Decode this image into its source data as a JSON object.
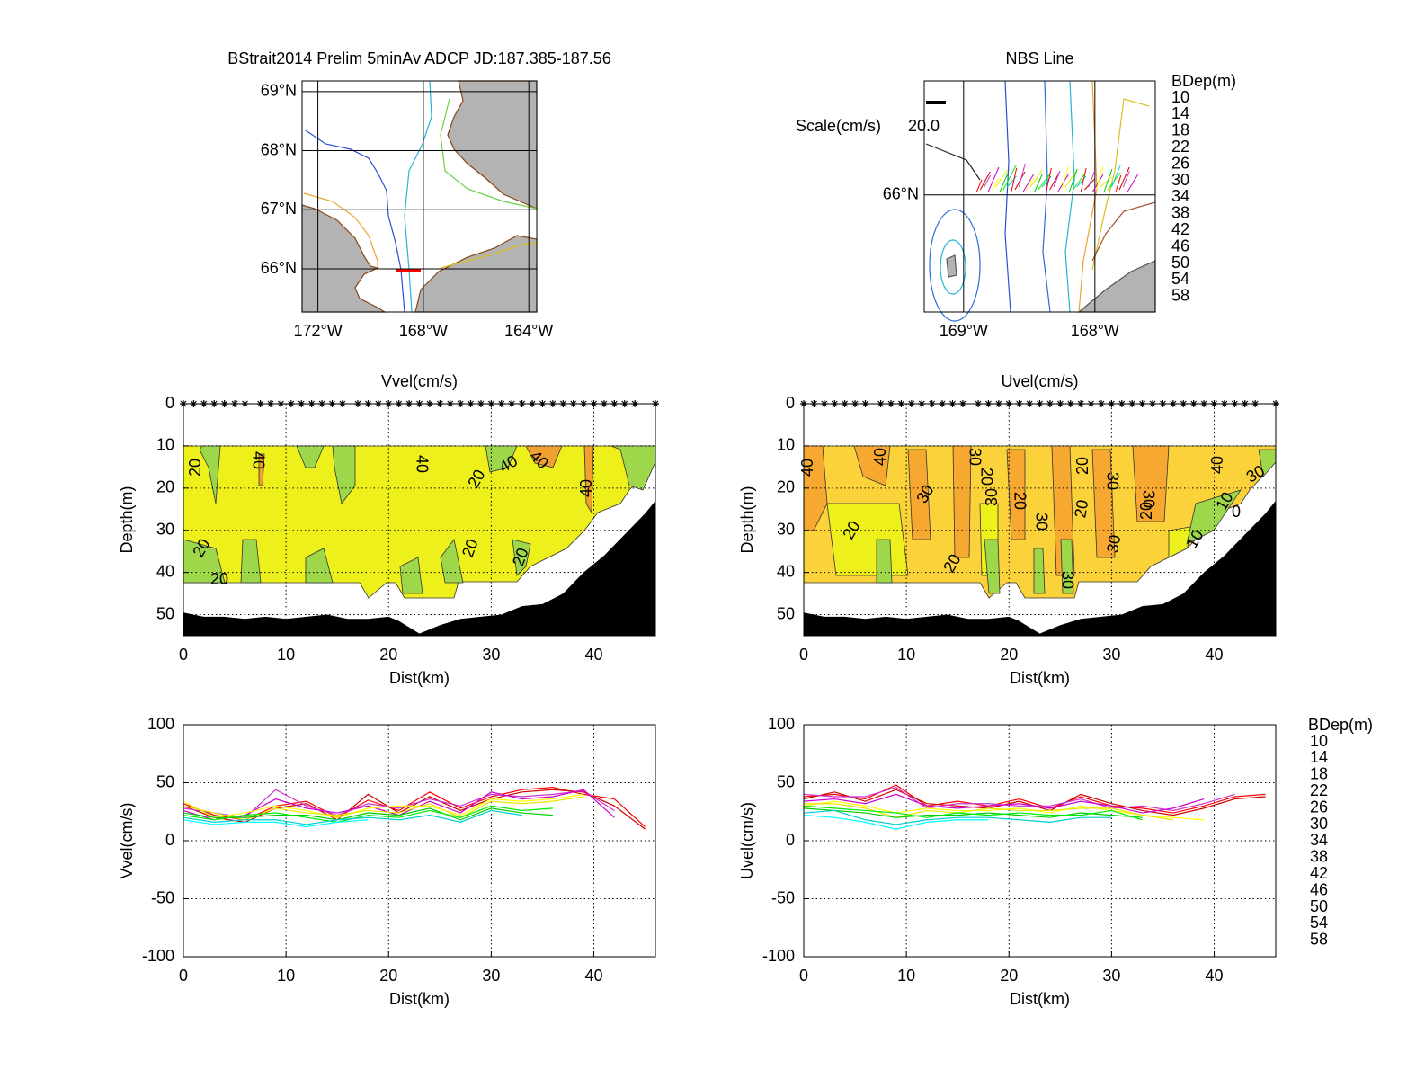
{
  "chart_data": [
    {
      "type": "map",
      "title": "BStrait2014 Prelim 5minAv ADCP JD:187.385-187.56",
      "xlim": [
        -172.6,
        -163.7
      ],
      "ylim": [
        65.27,
        69.18
      ],
      "xticks": [
        {
          "value": -172,
          "label": "172°W"
        },
        {
          "value": -168,
          "label": "168°W"
        },
        {
          "value": -164,
          "label": "164°W"
        }
      ],
      "yticks": [
        {
          "value": 66,
          "label": "66°N"
        },
        {
          "value": 67,
          "label": "67°N"
        },
        {
          "value": 68,
          "label": "68°N"
        },
        {
          "value": 69,
          "label": "69°N"
        }
      ],
      "grid": true
    },
    {
      "type": "map",
      "title": "NBS Line",
      "xlim": [
        -169.3,
        -167.54
      ],
      "ylim": [
        65.64,
        66.35
      ],
      "xticks": [
        {
          "value": -169,
          "label": "169°W"
        },
        {
          "value": -168,
          "label": "168°W"
        }
      ],
      "yticks": [
        {
          "value": 66,
          "label": "66°N"
        }
      ],
      "grid": true,
      "scale_label": "Scale(cm/s)",
      "scale": {
        "value": 20,
        "label": "20.0"
      },
      "legend_title": "BDep(m)",
      "series": [
        {
          "name": "10",
          "color": "#ff0000"
        },
        {
          "name": "14",
          "color": "#cc0000"
        },
        {
          "name": "18",
          "color": "#cc33cc"
        },
        {
          "name": "22",
          "color": "#cc00cc"
        },
        {
          "name": "26",
          "color": "#ffff00"
        },
        {
          "name": "30",
          "color": "#e6e600"
        },
        {
          "name": "34",
          "color": "#00cc00"
        },
        {
          "name": "38",
          "color": "#00ee00"
        },
        {
          "name": "42",
          "color": "#00cccc"
        },
        {
          "name": "46",
          "color": "#00ffff"
        },
        {
          "name": "50",
          "color": "#0000cc"
        },
        {
          "name": "54",
          "color": "#000080"
        },
        {
          "name": "58",
          "color": "#000000"
        }
      ]
    },
    {
      "type": "contour",
      "title": "Vvel(cm/s)",
      "xlabel": "Dist(km)",
      "ylabel": "Depth(m)",
      "xlim": [
        0,
        46
      ],
      "ylim": [
        0,
        55
      ],
      "y_reversed": true,
      "xticks": [
        0,
        10,
        20,
        30,
        40
      ],
      "yticks": [
        0,
        10,
        20,
        30,
        40,
        50
      ],
      "grid": true,
      "stations": [
        0,
        1,
        2,
        3,
        4,
        5,
        6,
        7.5,
        8.5,
        9.5,
        10.5,
        11.5,
        12.5,
        13.5,
        14.5,
        15.5,
        17,
        18,
        19,
        20,
        21,
        22,
        23,
        24,
        25,
        26,
        27,
        28,
        29,
        30,
        31,
        32,
        33,
        34,
        35,
        36,
        37,
        38,
        39,
        40,
        41,
        42,
        43,
        44,
        46
      ],
      "bottom": {
        "x": [
          0,
          2,
          4,
          6,
          8,
          10,
          12,
          14,
          16,
          18,
          20,
          21,
          23,
          25,
          27,
          29,
          31,
          33,
          35,
          37,
          39,
          41,
          43,
          45,
          46
        ],
        "depth": [
          49.5,
          50.5,
          50.5,
          51,
          50.5,
          51,
          50.5,
          50,
          51,
          51,
          50.5,
          51.5,
          54.5,
          52.5,
          51,
          50.5,
          50,
          48,
          47.5,
          45,
          40,
          36,
          31,
          26,
          23
        ]
      },
      "contour_labels": [
        20,
        40,
        40,
        20,
        40,
        40,
        40,
        20,
        20,
        20,
        20
      ]
    },
    {
      "type": "contour",
      "title": "Uvel(cm/s)",
      "xlabel": "Dist(km)",
      "ylabel": "Depth(m)",
      "xlim": [
        0,
        46
      ],
      "ylim": [
        0,
        55
      ],
      "y_reversed": true,
      "xticks": [
        0,
        10,
        20,
        30,
        40
      ],
      "yticks": [
        0,
        10,
        20,
        30,
        40,
        50
      ],
      "grid": true,
      "stations": [
        0,
        1,
        2,
        3,
        4,
        5,
        6,
        7.5,
        8.5,
        9.5,
        10.5,
        11.5,
        12.5,
        13.5,
        14.5,
        15.5,
        17,
        18,
        19,
        20,
        21,
        22,
        23,
        24,
        25,
        26,
        27,
        28,
        29,
        30,
        31,
        32,
        33,
        34,
        35,
        36,
        37,
        38,
        39,
        40,
        41,
        42,
        43,
        44,
        46
      ],
      "bottom": {
        "x": [
          0,
          2,
          4,
          6,
          8,
          10,
          12,
          14,
          16,
          18,
          20,
          21,
          23,
          25,
          27,
          29,
          31,
          33,
          35,
          37,
          39,
          41,
          43,
          45,
          46
        ],
        "depth": [
          49.5,
          50.5,
          50.5,
          51,
          50.5,
          51,
          50.5,
          50,
          51,
          51,
          50.5,
          51.5,
          54.5,
          52.5,
          51,
          50.5,
          50,
          48,
          47.5,
          45,
          40,
          36,
          31,
          26,
          23
        ]
      },
      "contour_labels": [
        40,
        40,
        30,
        20,
        30,
        30,
        20,
        20,
        30,
        20,
        30,
        20,
        30,
        20,
        30,
        20,
        30,
        40,
        30,
        10,
        0,
        10
      ]
    },
    {
      "type": "line",
      "xlabel": "Dist(km)",
      "ylabel": "Vvel(cm/s)",
      "xlim": [
        0,
        46
      ],
      "ylim": [
        -100,
        100
      ],
      "xticks": [
        0,
        10,
        20,
        30,
        40
      ],
      "yticks": [
        -100,
        -50,
        0,
        50,
        100
      ],
      "grid": true,
      "x": [
        0,
        3,
        6,
        9,
        12,
        15,
        18,
        21,
        24,
        27,
        30,
        33,
        36,
        39,
        42,
        45
      ],
      "series": [
        {
          "color": "#ff0000",
          "values": [
            32,
            22,
            18,
            30,
            34,
            20,
            35,
            26,
            42,
            28,
            38,
            44,
            46,
            40,
            36,
            12
          ]
        },
        {
          "color": "#cc0000",
          "values": [
            30,
            20,
            16,
            28,
            32,
            18,
            40,
            24,
            38,
            26,
            36,
            42,
            44,
            42,
            30,
            10
          ]
        },
        {
          "color": "#cc33cc",
          "values": [
            28,
            24,
            20,
            44,
            30,
            22,
            32,
            28,
            36,
            30,
            40,
            38,
            40,
            43,
            26,
            null
          ]
        },
        {
          "color": "#cc00cc",
          "values": [
            26,
            18,
            22,
            36,
            28,
            24,
            30,
            22,
            34,
            24,
            42,
            36,
            38,
            44,
            20,
            null
          ]
        },
        {
          "color": "#ffff00",
          "values": [
            34,
            20,
            24,
            30,
            26,
            20,
            28,
            30,
            30,
            22,
            36,
            34,
            36,
            40,
            null,
            null
          ]
        },
        {
          "color": "#e6e600",
          "values": [
            30,
            24,
            18,
            28,
            24,
            22,
            26,
            24,
            32,
            20,
            34,
            32,
            34,
            38,
            null,
            null
          ]
        },
        {
          "color": "#00cc00",
          "values": [
            24,
            20,
            20,
            22,
            22,
            18,
            24,
            22,
            28,
            18,
            28,
            24,
            22,
            null,
            null,
            null
          ]
        },
        {
          "color": "#00ee00",
          "values": [
            22,
            18,
            22,
            24,
            20,
            16,
            22,
            20,
            26,
            20,
            30,
            26,
            28,
            null,
            null,
            null
          ]
        },
        {
          "color": "#00cccc",
          "values": [
            20,
            16,
            18,
            18,
            14,
            18,
            20,
            18,
            22,
            16,
            26,
            22,
            null,
            null,
            null,
            null
          ]
        },
        {
          "color": "#00ffff",
          "values": [
            18,
            14,
            16,
            16,
            12,
            16,
            18,
            null,
            null,
            null,
            null,
            null,
            null,
            null,
            null,
            null
          ]
        },
        {
          "color": "#0000cc",
          "values": [
            null,
            null,
            null,
            null,
            null,
            null,
            null,
            null,
            null,
            null,
            null,
            null,
            null,
            null,
            null,
            null
          ]
        },
        {
          "color": "#000080",
          "values": [
            null,
            null,
            null,
            null,
            null,
            null,
            null,
            null,
            null,
            null,
            null,
            null,
            null,
            null,
            null,
            null
          ]
        },
        {
          "color": "#000000",
          "values": [
            null,
            null,
            null,
            null,
            null,
            null,
            null,
            null,
            null,
            null,
            null,
            null,
            null,
            null,
            null,
            null
          ]
        }
      ]
    },
    {
      "type": "line",
      "xlabel": "Dist(km)",
      "ylabel": "Uvel(cm/s)",
      "xlim": [
        0,
        46
      ],
      "ylim": [
        -100,
        100
      ],
      "xticks": [
        0,
        10,
        20,
        30,
        40
      ],
      "yticks": [
        -100,
        -50,
        0,
        50,
        100
      ],
      "grid": true,
      "legend": "outside-right",
      "legend_title": "BDep(m)",
      "x": [
        0,
        3,
        6,
        9,
        12,
        15,
        18,
        21,
        24,
        27,
        30,
        33,
        36,
        39,
        42,
        45
      ],
      "series": [
        {
          "name": "10",
          "color": "#ff0000",
          "values": [
            38,
            40,
            36,
            48,
            30,
            34,
            30,
            36,
            28,
            38,
            30,
            28,
            24,
            30,
            38,
            40
          ]
        },
        {
          "name": "14",
          "color": "#cc0000",
          "values": [
            36,
            42,
            34,
            44,
            32,
            30,
            28,
            34,
            26,
            40,
            32,
            26,
            22,
            28,
            36,
            38
          ]
        },
        {
          "name": "18",
          "color": "#cc33cc",
          "values": [
            40,
            38,
            38,
            46,
            28,
            32,
            32,
            30,
            30,
            36,
            28,
            30,
            26,
            32,
            40,
            null
          ]
        },
        {
          "name": "22",
          "color": "#cc00cc",
          "values": [
            34,
            36,
            32,
            40,
            30,
            28,
            30,
            32,
            28,
            34,
            30,
            24,
            28,
            36,
            null,
            null
          ]
        },
        {
          "name": "26",
          "color": "#ffff00",
          "values": [
            30,
            34,
            30,
            24,
            28,
            26,
            26,
            28,
            24,
            30,
            26,
            22,
            20,
            18,
            null,
            null
          ]
        },
        {
          "name": "30",
          "color": "#e6e600",
          "values": [
            32,
            32,
            28,
            20,
            26,
            24,
            28,
            26,
            26,
            28,
            28,
            22,
            18,
            null,
            null,
            null
          ]
        },
        {
          "name": "34",
          "color": "#00cc00",
          "values": [
            28,
            26,
            24,
            20,
            22,
            22,
            24,
            22,
            20,
            24,
            22,
            20,
            null,
            null,
            null,
            null
          ]
        },
        {
          "name": "38",
          "color": "#00ee00",
          "values": [
            30,
            28,
            26,
            24,
            20,
            24,
            22,
            24,
            22,
            22,
            26,
            18,
            null,
            null,
            null,
            null
          ]
        },
        {
          "name": "42",
          "color": "#00cccc",
          "values": [
            24,
            26,
            18,
            14,
            18,
            20,
            20,
            18,
            16,
            20,
            20,
            null,
            null,
            null,
            null,
            null
          ]
        },
        {
          "name": "46",
          "color": "#00ffff",
          "values": [
            22,
            20,
            16,
            10,
            16,
            18,
            18,
            null,
            null,
            null,
            null,
            null,
            null,
            null,
            null,
            null
          ]
        },
        {
          "name": "50",
          "color": "#0000cc",
          "values": [
            null,
            null,
            null,
            null,
            null,
            null,
            null,
            null,
            null,
            null,
            null,
            null,
            null,
            null,
            null,
            null
          ]
        },
        {
          "name": "54",
          "color": "#000080",
          "values": [
            null,
            null,
            null,
            null,
            null,
            null,
            null,
            null,
            null,
            null,
            null,
            null,
            null,
            null,
            null,
            null
          ]
        },
        {
          "name": "58",
          "color": "#000000",
          "values": [
            null,
            null,
            null,
            null,
            null,
            null,
            null,
            null,
            null,
            null,
            null,
            null,
            null,
            null,
            null,
            null
          ]
        }
      ]
    }
  ]
}
